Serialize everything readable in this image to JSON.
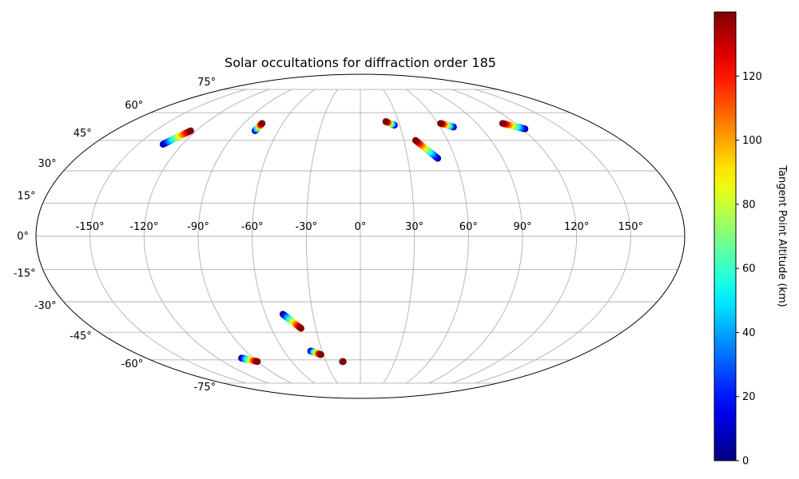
{
  "chart_data": {
    "type": "scatter",
    "projection": "mollweide",
    "title": "Solar occultations for diffraction order 185",
    "colorbar": {
      "label": "Tangent Point Altitude (km)",
      "colormap": "jet",
      "range": [
        0,
        140
      ],
      "ticks": [
        0,
        20,
        40,
        60,
        80,
        100,
        120
      ]
    },
    "lon_ticks": [
      "-150°",
      "-120°",
      "-90°",
      "-60°",
      "-30°",
      "0°",
      "30°",
      "60°",
      "90°",
      "120°",
      "150°"
    ],
    "lat_ticks": [
      "75°",
      "60°",
      "45°",
      "30°",
      "15°",
      "0°",
      "-15°",
      "-30°",
      "-45°",
      "-60°",
      "-75°"
    ],
    "grid": true,
    "tracks": [
      {
        "lon_start": -133,
        "lat_start": 43,
        "lon_end": -124,
        "lat_end": 50,
        "alt_start": 0,
        "alt_end": 140
      },
      {
        "lon_start": -77,
        "lat_start": 50,
        "lon_end": -76,
        "lat_end": 54,
        "alt_start": 0,
        "alt_end": 140
      },
      {
        "lon_start": 26,
        "lat_start": 53,
        "lon_end": 20,
        "lat_end": 55,
        "alt_start": 0,
        "alt_end": 140
      },
      {
        "lon_start": 49,
        "lat_start": 36,
        "lon_end": 38,
        "lat_end": 45,
        "alt_start": 0,
        "alt_end": 140
      },
      {
        "lon_start": 70,
        "lat_start": 52,
        "lon_end": 62,
        "lat_end": 54,
        "alt_start": 0,
        "alt_end": 140
      },
      {
        "lon_start": 122,
        "lat_start": 51,
        "lon_end": 110,
        "lat_end": 54,
        "alt_start": 0,
        "alt_end": 140
      },
      {
        "lon_start": -49,
        "lat_start": -36,
        "lon_end": -40,
        "lat_end": -43,
        "alt_start": 0,
        "alt_end": 140
      },
      {
        "lon_start": -39,
        "lat_start": -55,
        "lon_end": -32,
        "lat_end": -57,
        "alt_start": 0,
        "alt_end": 140
      },
      {
        "lon_start": -16,
        "lat_start": -61,
        "lon_end": -15,
        "lat_end": -61,
        "alt_start": 0,
        "alt_end": 140
      },
      {
        "lon_start": -100,
        "lat_start": -59,
        "lon_end": -90,
        "lat_end": -61,
        "alt_start": 0,
        "alt_end": 140
      }
    ]
  }
}
